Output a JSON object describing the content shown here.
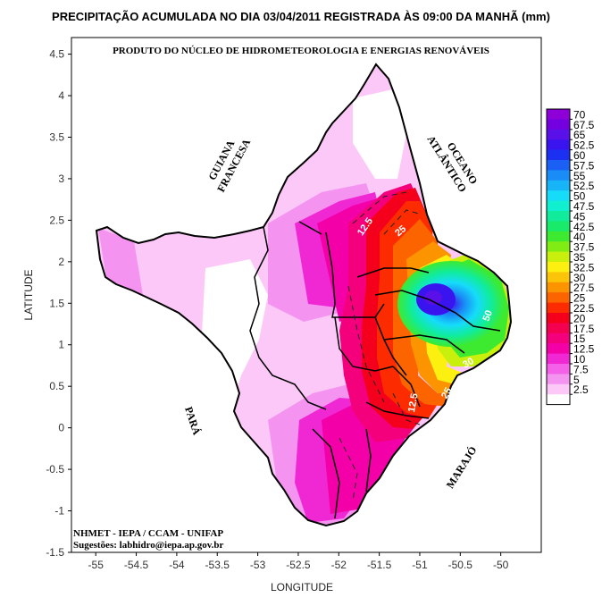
{
  "title": "PRECIPITAÇÃO ACUMULADA NO DIA 03/04/2011 REGISTRADA ÀS 09:00 DA MANHÃ (mm)",
  "subtitle": "PRODUTO DO NÚCLEO DE HIDROMETEOROLOGIA E ENERGIAS RENOVÁVEIS",
  "x_axis": {
    "label": "LONGITUDE",
    "ticks": [
      "-55",
      "-54.5",
      "-54",
      "-53.5",
      "-53",
      "-52.5",
      "-52",
      "-51.5",
      "-51",
      "-50.5",
      "-50"
    ],
    "values": [
      -55,
      -54.5,
      -54,
      -53.5,
      -53,
      -52.5,
      -52,
      -51.5,
      -51,
      -50.5,
      -50
    ],
    "range": [
      -55.3,
      -49.5
    ]
  },
  "y_axis": {
    "label": "LATITUDE",
    "ticks": [
      "4.5",
      "4",
      "3.5",
      "3",
      "2.5",
      "2",
      "1.5",
      "1",
      "0.5",
      "0",
      "-0.5",
      "-1",
      "-1.5"
    ],
    "values": [
      4.5,
      4,
      3.5,
      3,
      2.5,
      2,
      1.5,
      1,
      0.5,
      0,
      -0.5,
      -1,
      -1.5
    ],
    "range": [
      -1.5,
      4.7
    ]
  },
  "legend": {
    "labels": [
      "70",
      "67.5",
      "65",
      "62.5",
      "60",
      "57.5",
      "55",
      "52.5",
      "50",
      "47.5",
      "45",
      "42.5",
      "40",
      "37.5",
      "35",
      "32.5",
      "30",
      "27.5",
      "25",
      "22.5",
      "20",
      "17.5",
      "15",
      "12.5",
      "10",
      "7.5",
      "5",
      "2.5"
    ],
    "colors": [
      "#8e00d8",
      "#7400e0",
      "#5a10e8",
      "#3a14ee",
      "#1c30f2",
      "#1a60f4",
      "#1a8cf6",
      "#18b4f8",
      "#16dcfa",
      "#10f0d0",
      "#10ec9c",
      "#1aea6a",
      "#3eea30",
      "#80ec14",
      "#c8f00c",
      "#fcf010",
      "#fcc408",
      "#fc9400",
      "#fc6400",
      "#fc2c00",
      "#f4001c",
      "#f40050",
      "#f4007c",
      "#f400a8",
      "#f028d4",
      "#f460e8",
      "#f494f0",
      "#fcc8f8",
      "#ffffff"
    ]
  },
  "region_labels": {
    "guiana": "GUIANA\nFRANCESA",
    "oceano": "OCEANO\nATLÂNTICO",
    "para": "PARÁ",
    "marajo": "MARAJÓ"
  },
  "contour_labels": [
    "12.5",
    "25",
    "12.5",
    "25",
    "30",
    "50"
  ],
  "credits": {
    "line1": "NHMET - IEPA  /  CCAM - UNIFAP",
    "line2": "Sugestões: labhidro@iepa.ap.gov.br"
  },
  "chart_data": {
    "type": "heatmap",
    "title": "PRECIPITAÇÃO ACUMULADA NO DIA 03/04/2011 REGISTRADA ÀS 09:00 DA MANHÃ (mm)",
    "xlabel": "LONGITUDE",
    "ylabel": "LATITUDE",
    "xlim": [
      -55.3,
      -49.5
    ],
    "ylim": [
      -1.5,
      4.7
    ],
    "colorbar_levels": [
      2.5,
      5,
      7.5,
      10,
      12.5,
      15,
      17.5,
      20,
      22.5,
      25,
      27.5,
      30,
      32.5,
      35,
      37.5,
      40,
      42.5,
      45,
      47.5,
      50,
      52.5,
      55,
      57.5,
      60,
      62.5,
      65,
      67.5,
      70
    ],
    "maximum_near": {
      "lon": -50.8,
      "lat": 1.55,
      "value": 67.5
    },
    "grid": false,
    "legend_placement": "right"
  }
}
